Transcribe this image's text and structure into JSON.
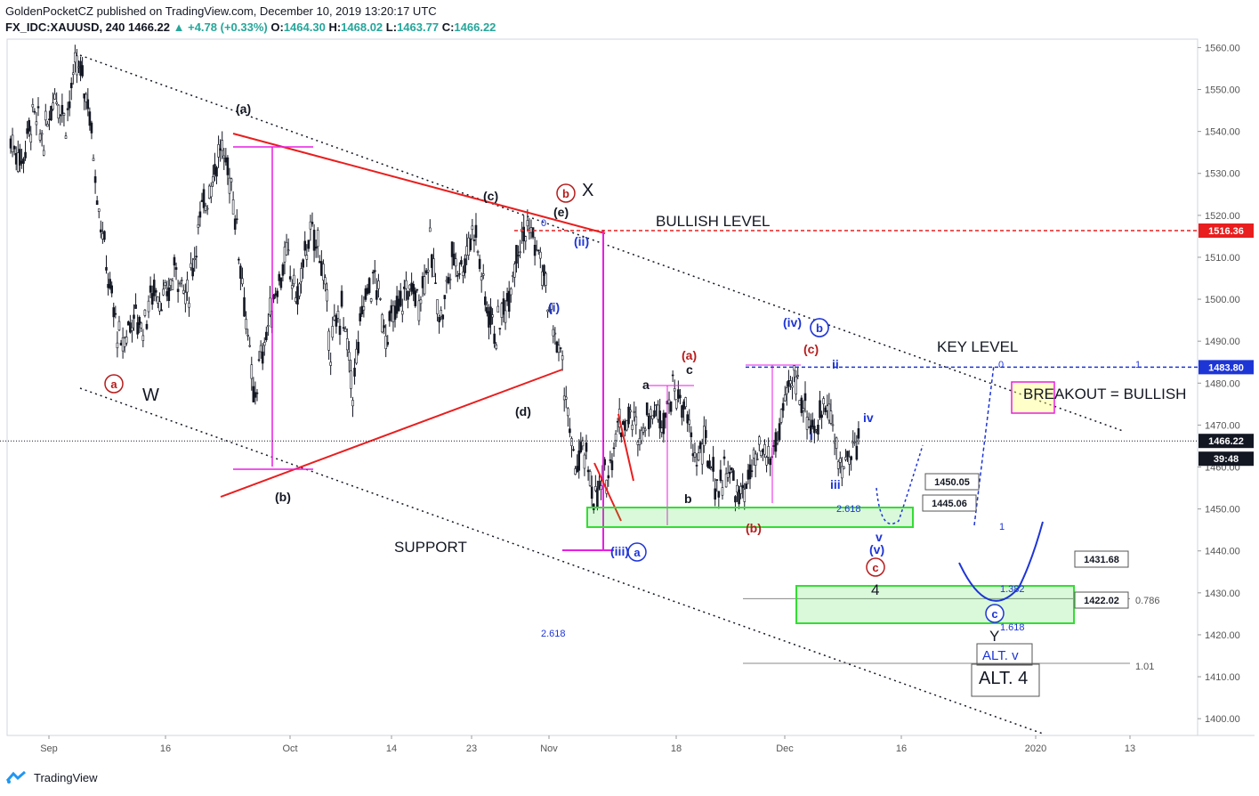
{
  "header": {
    "line1": "GoldenPocketCZ published on TradingView.com, December 10, 2019 13:20:17 UTC",
    "symbol": "FX_IDC:XAUUSD, 240",
    "last": "1466.22",
    "change": "▲ +4.78 (+0.33%)",
    "open_label": "O:",
    "open": "1464.30",
    "high_label": "H:",
    "high": "1468.02",
    "low_label": "L:",
    "low": "1463.77",
    "close_label": "C:",
    "close": "1466.22"
  },
  "footer": {
    "brand": "TradingView"
  },
  "colors": {
    "up": "#26a69a",
    "candle": "#131722",
    "red": "#e91e1e",
    "magenta": "#e91ee3",
    "blue": "#1e35d6",
    "green": "#33dd33",
    "dark_red": "#b71c1c"
  },
  "chart_data": {
    "type": "candlestick",
    "title": "FX_IDC:XAUUSD, 240",
    "ylim": [
      1396,
      1562
    ],
    "y_ticks": [
      "1400.00",
      "1410.00",
      "1420.00",
      "1430.00",
      "1440.00",
      "1450.00",
      "1460.00",
      "1470.00",
      "1480.00",
      "1490.00",
      "1500.00",
      "1510.00",
      "1520.00",
      "1530.00",
      "1540.00",
      "1550.00",
      "1560.00"
    ],
    "x_ticks": [
      "Sep",
      "16",
      "Oct",
      "14",
      "23",
      "Nov",
      "18",
      "Dec",
      "16",
      "2020",
      "13"
    ],
    "price_badges": [
      {
        "label": "1516.36",
        "color": "#e91e1e"
      },
      {
        "label": "1483.80",
        "color": "#1e35d6"
      },
      {
        "label": "1466.22",
        "color": "#131722"
      },
      {
        "label": "39:48",
        "color": "#131722"
      }
    ],
    "level_boxes": [
      "1450.05",
      "1445.06",
      "1431.68",
      "1422.02"
    ],
    "fib_labels": [
      "2.618",
      "2.618",
      "1",
      "1.382",
      "1.618",
      "0",
      "0",
      "1",
      "0.786",
      "1.01"
    ],
    "annotations": {
      "text": [
        "BULLISH LEVEL",
        "KEY LEVEL",
        "BREAKOUT = BULLISH",
        "SUPPORT",
        "W",
        "X",
        "4",
        "Y",
        "ALT. v",
        "ALT. 4"
      ],
      "waves_black": [
        "(a)",
        "(b)",
        "(c)",
        "(d)",
        "(e)",
        "a",
        "b",
        "c"
      ],
      "waves_blue": [
        "(i)",
        "(ii)",
        "(iii)",
        "(iv)",
        "(v)",
        "i",
        "ii",
        "iii",
        "iv",
        "v"
      ],
      "waves_red": [
        "(a)",
        "(b)",
        "(c)"
      ],
      "circled": [
        "a",
        "b",
        "b",
        "a",
        "b",
        "c",
        "c"
      ]
    },
    "price_path": [
      1538,
      1533,
      1544,
      1538,
      1550,
      1543,
      1556,
      1548,
      1522,
      1502,
      1488,
      1496,
      1494,
      1503,
      1499,
      1508,
      1500,
      1517,
      1527,
      1536,
      1528,
      1505,
      1476,
      1490,
      1502,
      1510,
      1500,
      1515,
      1513,
      1489,
      1498,
      1478,
      1500,
      1505,
      1492,
      1497,
      1503,
      1500,
      1512,
      1495,
      1510,
      1508,
      1518,
      1500,
      1492,
      1500,
      1514,
      1517,
      1509,
      1495,
      1484,
      1460,
      1463,
      1452,
      1458,
      1470,
      1472,
      1468,
      1474,
      1472,
      1478,
      1475,
      1462,
      1465,
      1455,
      1460,
      1452,
      1458,
      1463,
      1462,
      1473,
      1482,
      1474,
      1468,
      1478,
      1460,
      1462,
      1468
    ]
  }
}
